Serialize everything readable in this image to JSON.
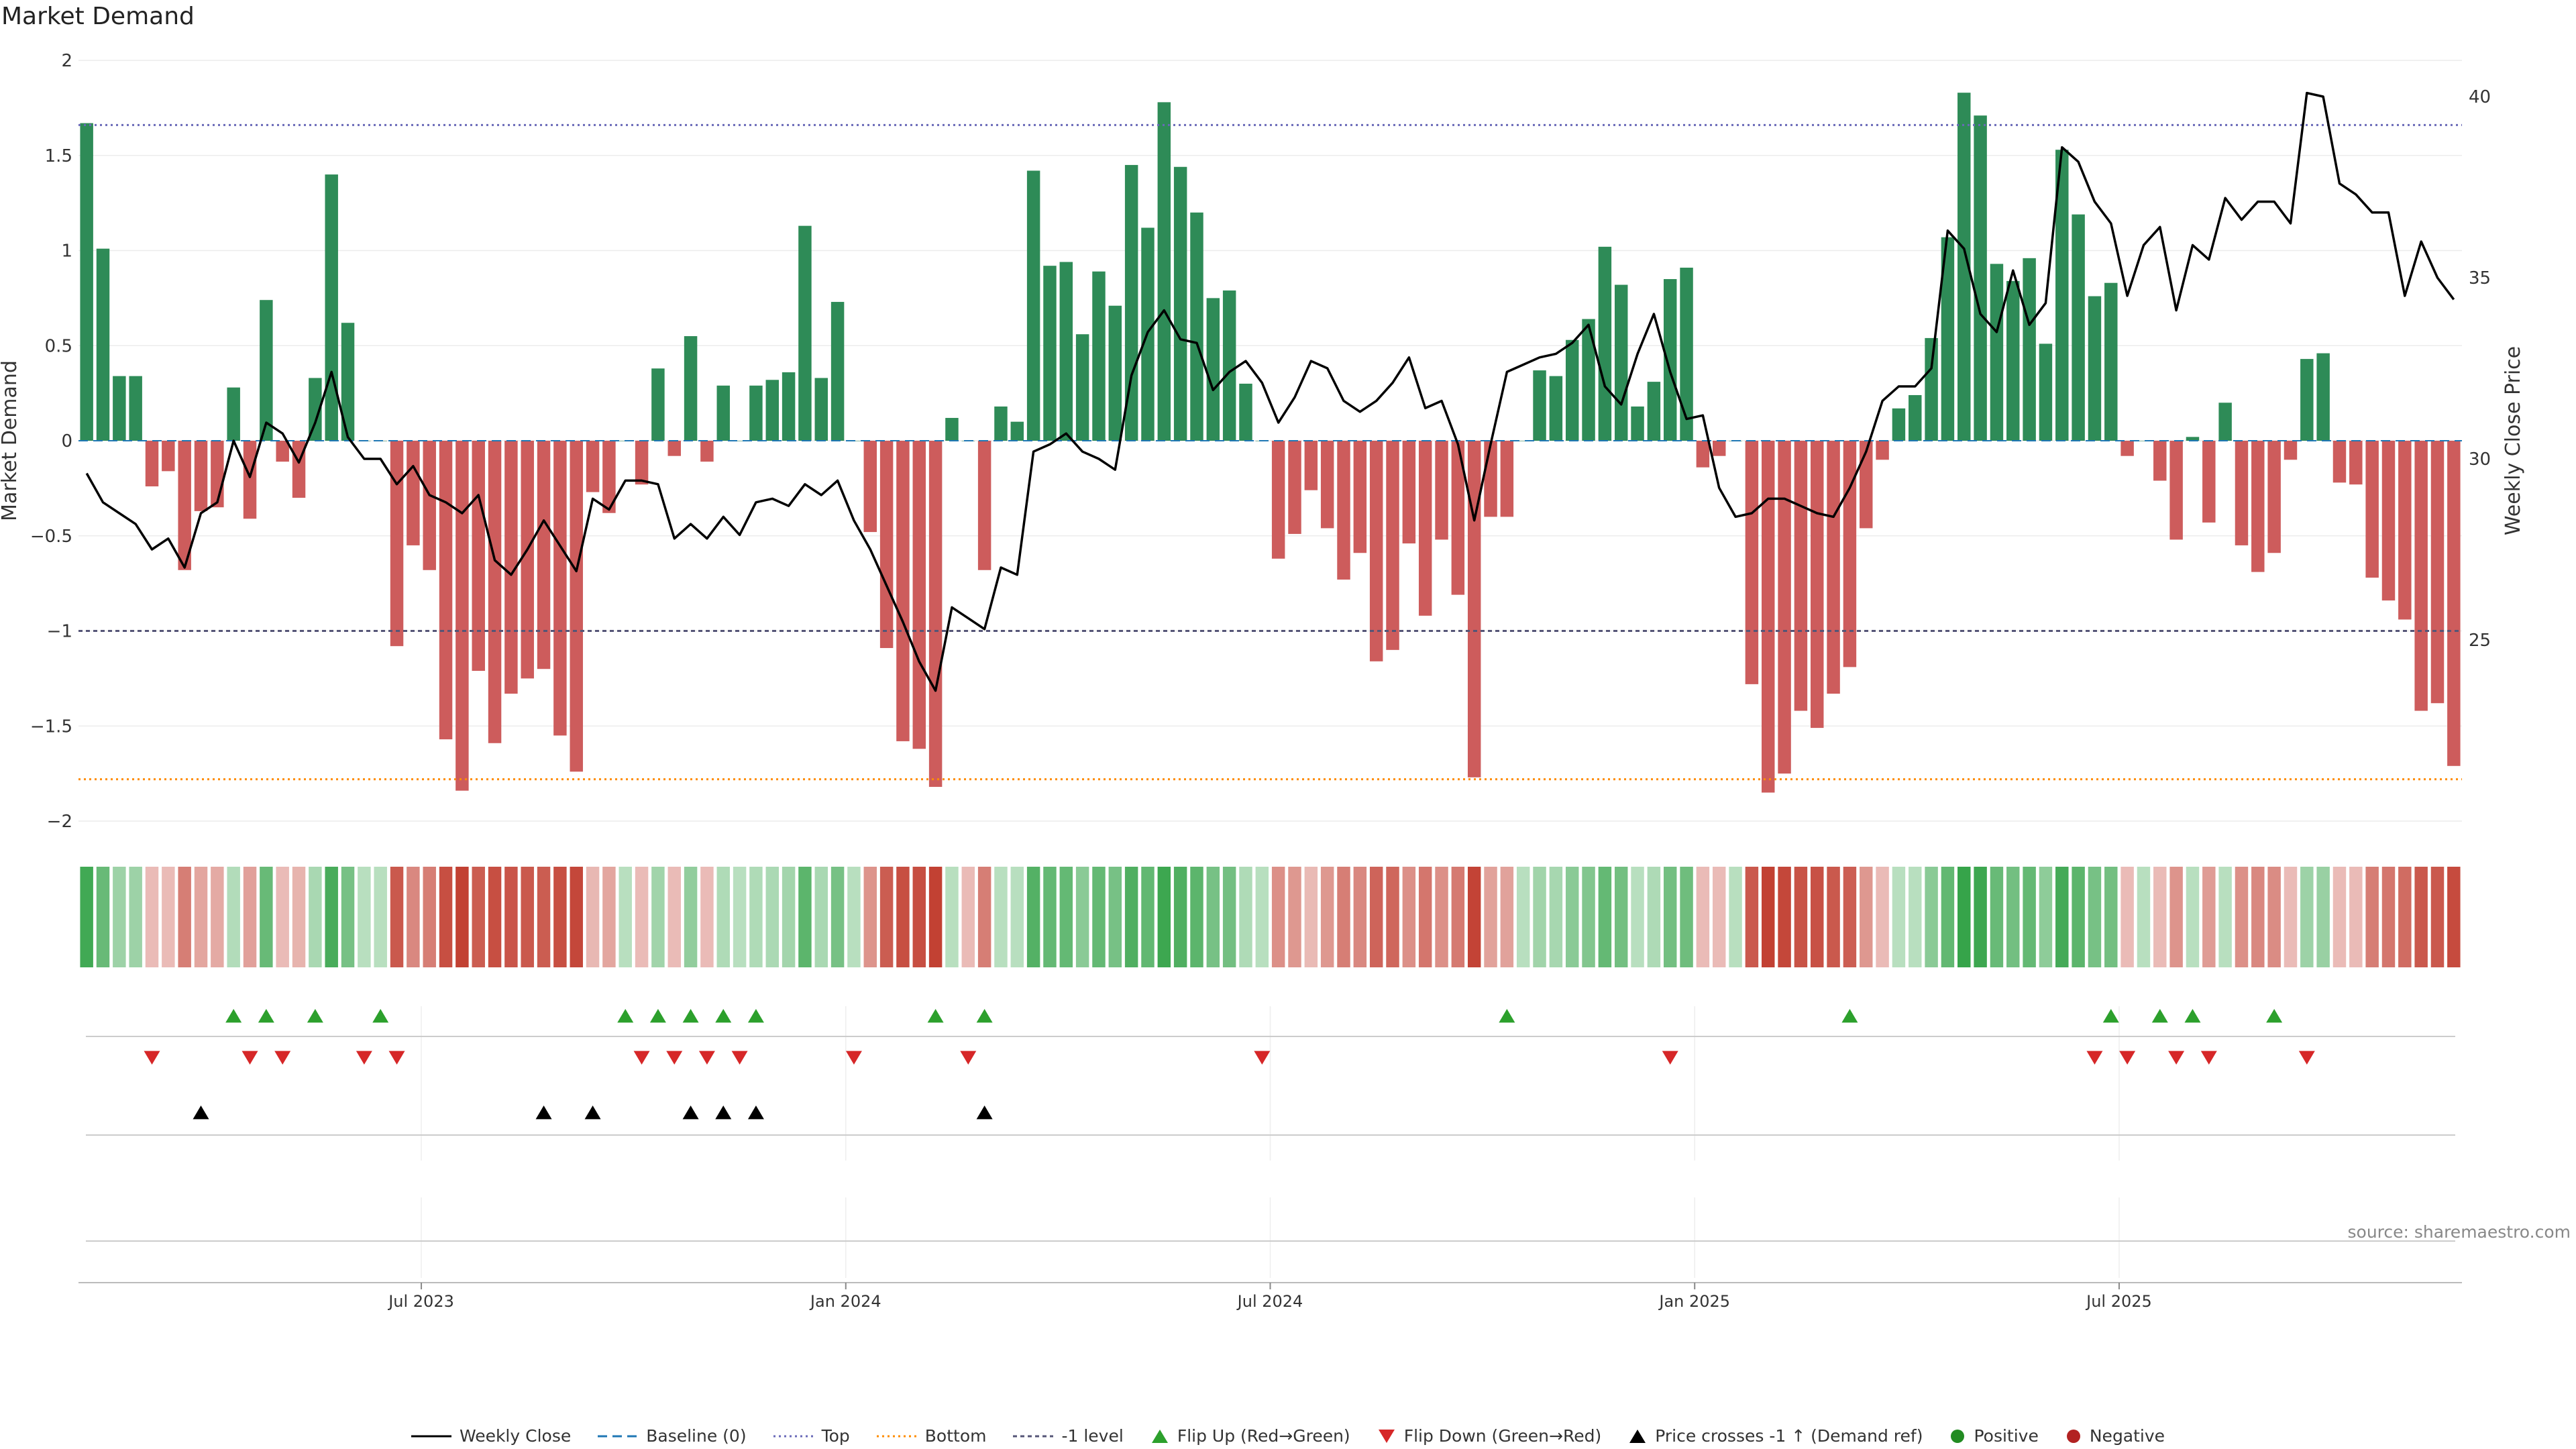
{
  "chart_data": {
    "type": "bar",
    "title": "Market Demand",
    "ylabel": "Market Demand",
    "y2label": "Weekly Close Price",
    "ylim": [
      -2,
      2
    ],
    "y2lim": [
      20,
      41
    ],
    "yticks": [
      "2",
      "1.5",
      "1",
      "0.5",
      "0",
      "−0.5",
      "−1",
      "−1.5",
      "−2"
    ],
    "yticks_values": [
      2,
      1.5,
      1,
      0.5,
      0,
      -0.5,
      -1,
      -1.5,
      -2
    ],
    "y2ticks": [
      "40",
      "35",
      "30",
      "25"
    ],
    "y2ticks_values": [
      40,
      35,
      30,
      25
    ],
    "xticks": [
      "Jul 2023",
      "Jan 2024",
      "Jul 2024",
      "Jan 2025",
      "Jul 2025"
    ],
    "xticks_index": [
      21,
      47,
      73,
      99,
      125
    ],
    "levels": {
      "top": 1.66,
      "bottom": -1.78,
      "minus_one": -1,
      "baseline": 0
    },
    "demand": [
      1.67,
      1.01,
      0.34,
      0.34,
      -0.24,
      -0.16,
      -0.68,
      -0.37,
      -0.35,
      0.28,
      -0.41,
      0.74,
      -0.11,
      -0.3,
      0.33,
      1.4,
      0.62,
      0,
      0,
      -1.08,
      -0.55,
      -0.68,
      -1.57,
      -1.84,
      -1.21,
      -1.59,
      -1.33,
      -1.25,
      -1.2,
      -1.55,
      -1.74,
      -0.27,
      -0.38,
      0,
      -0.23,
      0.38,
      -0.08,
      0.55,
      -0.11,
      0.29,
      0,
      0.29,
      0.32,
      0.36,
      1.13,
      0.33,
      0.73,
      0,
      -0.48,
      -1.09,
      -1.58,
      -1.62,
      -1.82,
      0.12,
      0,
      -0.68,
      0.18,
      0.1,
      1.42,
      0.92,
      0.94,
      0.56,
      0.89,
      0.71,
      1.45,
      1.12,
      1.78,
      1.44,
      1.2,
      0.75,
      0.79,
      0.3,
      0,
      -0.62,
      -0.49,
      -0.26,
      -0.46,
      -0.73,
      -0.59,
      -1.16,
      -1.1,
      -0.54,
      -0.92,
      -0.52,
      -0.81,
      -1.77,
      -0.4,
      -0.4,
      0,
      0.37,
      0.34,
      0.53,
      0.64,
      1.02,
      0.82,
      0.18,
      0.31,
      0.85,
      0.91,
      -0.14,
      -0.08,
      0,
      -1.28,
      -1.85,
      -1.75,
      -1.42,
      -1.51,
      -1.33,
      -1.19,
      -0.46,
      -0.1,
      0.17,
      0.24,
      0.54,
      1.07,
      1.83,
      1.71,
      0.93,
      0.84,
      0.96,
      0.51,
      1.53,
      1.19,
      0.76,
      0.83,
      -0.08,
      0,
      -0.21,
      -0.52,
      0.02,
      -0.43,
      0.2,
      -0.55,
      -0.69,
      -0.59,
      -0.1,
      0.43,
      0.46,
      -0.22,
      -0.23,
      -0.72,
      -0.84,
      -0.94,
      -1.42,
      -1.38,
      -1.71
    ],
    "close": [
      29.6,
      28.8,
      28.5,
      28.2,
      27.5,
      27.8,
      27.0,
      28.5,
      28.8,
      30.5,
      29.5,
      31.0,
      30.7,
      29.9,
      31.0,
      32.4,
      30.6,
      30.0,
      30.0,
      29.3,
      29.8,
      29.0,
      28.8,
      28.5,
      29.0,
      27.2,
      26.8,
      27.5,
      28.3,
      27.6,
      26.9,
      28.9,
      28.6,
      29.4,
      29.4,
      29.3,
      27.8,
      28.2,
      27.8,
      28.4,
      27.9,
      28.8,
      28.9,
      28.7,
      29.3,
      29.0,
      29.4,
      28.3,
      27.5,
      26.5,
      25.5,
      24.4,
      23.6,
      25.9,
      25.6,
      25.3,
      27.0,
      26.8,
      30.2,
      30.4,
      30.7,
      30.2,
      30.0,
      29.7,
      32.3,
      33.5,
      34.1,
      33.3,
      33.2,
      31.9,
      32.4,
      32.7,
      32.1,
      31.0,
      31.7,
      32.7,
      32.5,
      31.6,
      31.3,
      31.6,
      32.1,
      32.8,
      31.4,
      31.6,
      30.4,
      28.3,
      30.4,
      32.4,
      32.6,
      32.8,
      32.9,
      33.2,
      33.7,
      32.0,
      31.5,
      32.9,
      34.0,
      32.4,
      31.1,
      31.2,
      29.2,
      28.4,
      28.5,
      28.9,
      28.9,
      28.7,
      28.5,
      28.4,
      29.2,
      30.2,
      31.6,
      32.0,
      32.0,
      32.5,
      36.3,
      35.8,
      34.0,
      33.5,
      35.2,
      33.7,
      34.3,
      38.6,
      38.2,
      37.1,
      36.5,
      34.5,
      35.9,
      36.4,
      34.1,
      35.9,
      35.5,
      37.2,
      36.6,
      37.1,
      37.1,
      36.5,
      40.1,
      40.0,
      37.6,
      37.3,
      36.8,
      36.8,
      34.5,
      36.0,
      35.0,
      34.4
    ],
    "heat_strip": [
      0.9,
      0.68,
      0.4,
      0.4,
      -0.24,
      -0.16,
      -0.6,
      -0.37,
      -0.35,
      0.28,
      -0.41,
      0.68,
      -0.11,
      -0.3,
      0.33,
      0.85,
      0.6,
      0.1,
      0.1,
      -0.82,
      -0.55,
      -0.6,
      -0.88,
      -0.95,
      -0.8,
      -0.88,
      -0.84,
      -0.82,
      -0.8,
      -0.88,
      -0.92,
      -0.27,
      -0.38,
      0.1,
      -0.23,
      0.38,
      -0.15,
      0.45,
      -0.2,
      0.29,
      0.1,
      0.29,
      0.32,
      0.36,
      0.75,
      0.33,
      0.6,
      0.1,
      -0.48,
      -0.8,
      -0.88,
      -0.88,
      -0.95,
      0.12,
      -0.05,
      -0.6,
      0.18,
      0.1,
      0.8,
      0.7,
      0.7,
      0.5,
      0.7,
      0.6,
      0.82,
      0.72,
      0.92,
      0.82,
      0.75,
      0.6,
      0.62,
      0.3,
      0.05,
      -0.5,
      -0.45,
      -0.26,
      -0.45,
      -0.6,
      -0.55,
      -0.75,
      -0.74,
      -0.5,
      -0.65,
      -0.5,
      -0.62,
      -0.94,
      -0.4,
      -0.4,
      0.1,
      0.37,
      0.34,
      0.5,
      0.55,
      0.7,
      0.62,
      0.18,
      0.31,
      0.62,
      0.65,
      -0.2,
      -0.15,
      0.05,
      -0.82,
      -0.95,
      -0.92,
      -0.85,
      -0.86,
      -0.82,
      -0.78,
      -0.46,
      -0.15,
      0.17,
      0.24,
      0.5,
      0.72,
      0.96,
      0.92,
      0.68,
      0.62,
      0.7,
      0.48,
      0.88,
      0.75,
      0.6,
      0.62,
      -0.12,
      0.05,
      -0.21,
      -0.48,
      0.05,
      -0.43,
      0.2,
      -0.5,
      -0.55,
      -0.52,
      -0.15,
      0.4,
      0.42,
      -0.22,
      -0.23,
      -0.6,
      -0.65,
      -0.7,
      -0.82,
      -0.82,
      -0.9
    ],
    "markers": {
      "flip_up": [
        9,
        11,
        14,
        18,
        33,
        35,
        37,
        39,
        41,
        52,
        55,
        87,
        108,
        124,
        127,
        129,
        134
      ],
      "flip_down": [
        4,
        10,
        12,
        17,
        19,
        34,
        36,
        38,
        40,
        47,
        54,
        72,
        97,
        123,
        125,
        128,
        130,
        136
      ],
      "cross_up": [
        7,
        28,
        31,
        37,
        39,
        41,
        55
      ]
    },
    "legend": [
      "Weekly Close",
      "Baseline (0)",
      "Top",
      "Bottom",
      "-1 level",
      "Flip Up (Red→Green)",
      "Flip Down (Green→Red)",
      "Price crosses -1 ↑ (Demand ref)",
      "Positive",
      "Negative"
    ],
    "source": "source: sharemaestro.com"
  },
  "colors": {
    "positive": "#2e8b57",
    "negative": "#cd5c5c",
    "flip_up": "#2ca02c",
    "flip_down": "#d62728",
    "cross": "#000000",
    "top_line": "#6a6ab8",
    "bottom_line": "#ff8c00",
    "minus_one_line": "#555577",
    "baseline": "#1f77b4",
    "legend_positive": "#228b22",
    "legend_negative": "#b22222"
  }
}
